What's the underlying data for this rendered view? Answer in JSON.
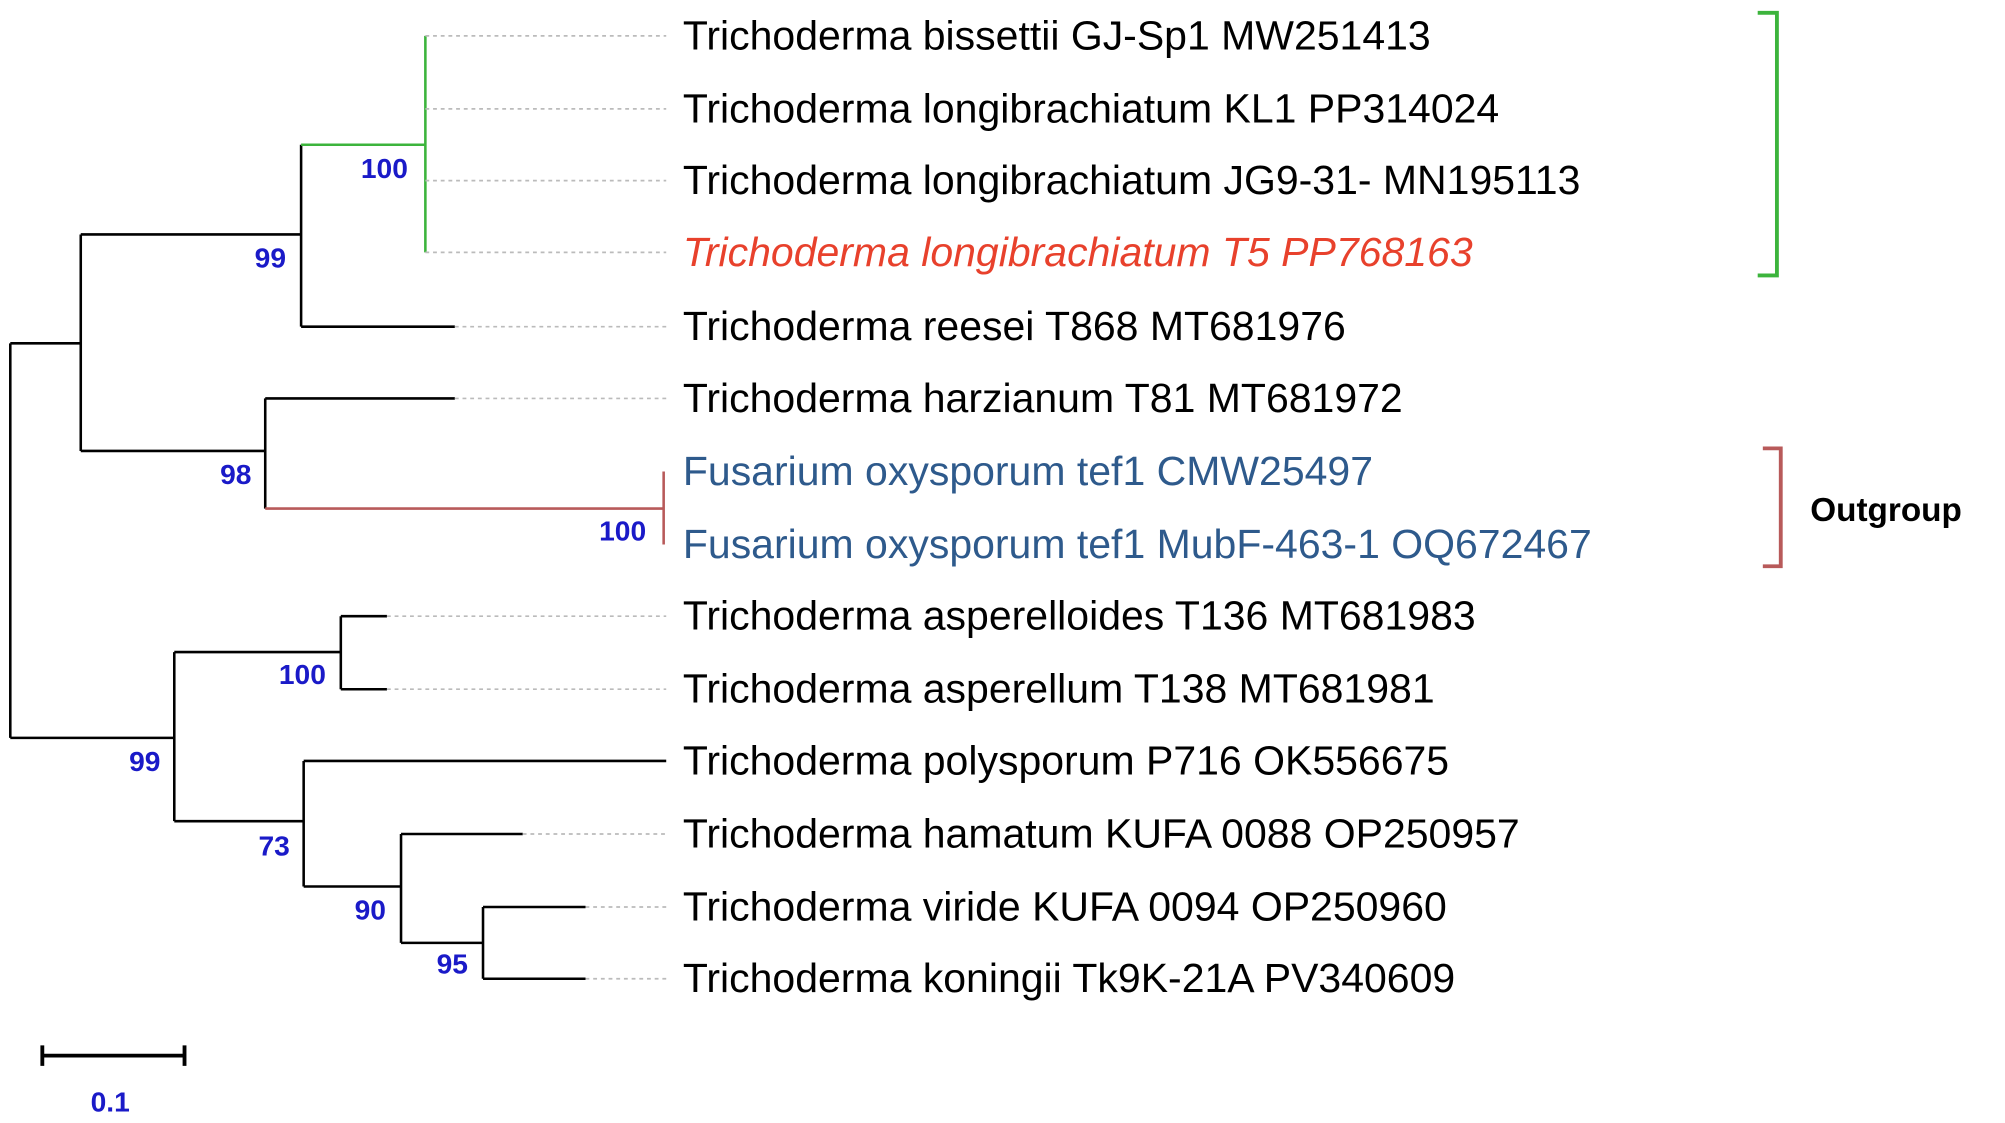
{
  "tree": {
    "taxa": [
      "Trichoderma bissettii GJ-Sp1 MW251413",
      "Trichoderma longibrachiatum KL1 PP314024",
      "Trichoderma longibrachiatum JG9-31- MN195113",
      "Trichoderma longibrachiatum T5 PP768163",
      "Trichoderma reesei T868 MT681976",
      "Trichoderma harzianum T81 MT681972",
      "Fusarium oxysporum tef1 CMW25497",
      "Fusarium oxysporum tef1 MubF-463-1 OQ672467",
      "Trichoderma asperelloides T136 MT681983",
      "Trichoderma asperellum T138 MT681981",
      "Trichoderma polysporum P716 OK556675",
      "Trichoderma hamatum KUFA 0088 OP250957",
      "Trichoderma viride KUFA 0094 OP250960",
      "Trichoderma koningii Tk9K-21A PV340609"
    ],
    "bootstrap": [
      100,
      99,
      98,
      100,
      100,
      99,
      73,
      90,
      95
    ],
    "outgroup_label": "Outgroup",
    "scale_label": 0.1
  }
}
